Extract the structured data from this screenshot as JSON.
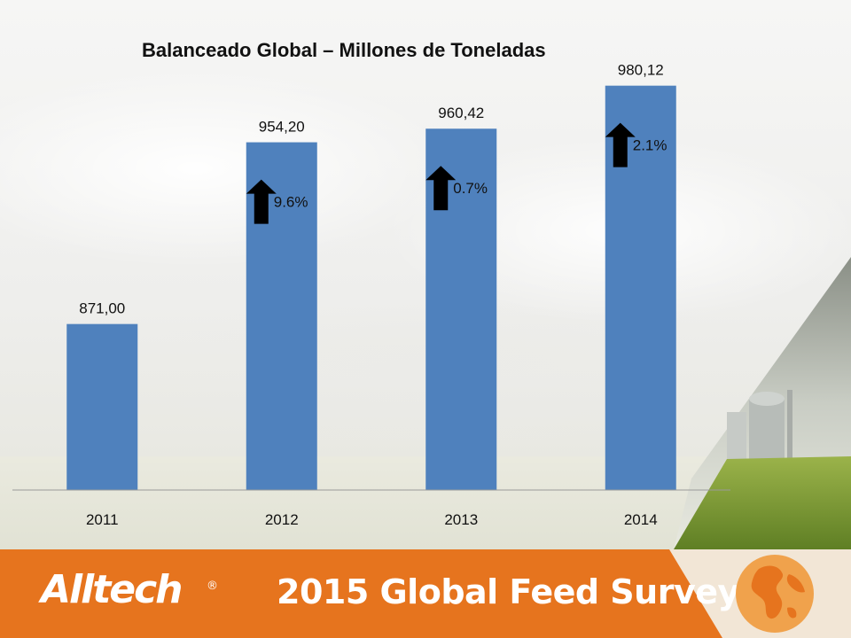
{
  "colors": {
    "bar": "#4f81bd",
    "axis": "#9a9a9a",
    "arrow": "#000000",
    "footer": "#e6741e",
    "text": "#111111"
  },
  "footer": {
    "brand": "Alltech",
    "brand_mark": "®",
    "survey_title": "2015 Global Feed Survey"
  },
  "chart_data": {
    "type": "bar",
    "title": "Balanceado Global – Millones de Toneladas",
    "categories": [
      "2011",
      "2012",
      "2013",
      "2014"
    ],
    "values": [
      871.0,
      954.2,
      960.42,
      980.12
    ],
    "value_labels": [
      "871,00",
      "954,20",
      "960,42",
      "980,12"
    ],
    "growth_labels": [
      "",
      "9.6%",
      "0.7%",
      "2.1%"
    ],
    "annotation_icon": "up-arrow-icon",
    "ylim": [
      795,
      995
    ],
    "grid": false,
    "legend": "none"
  }
}
